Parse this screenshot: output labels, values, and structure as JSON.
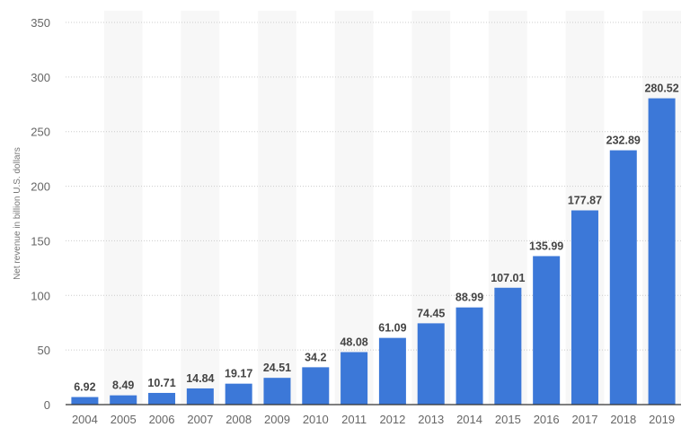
{
  "chart_data": {
    "type": "bar",
    "title": "",
    "xlabel": "",
    "ylabel": "Net revenue in billion U.S. dollars",
    "ylim": [
      0,
      350
    ],
    "yticks": [
      0,
      50,
      100,
      150,
      200,
      250,
      300,
      350
    ],
    "grid": true,
    "bar_color": "#3c78d8",
    "categories": [
      "2004",
      "2005",
      "2006",
      "2007",
      "2008",
      "2009",
      "2010",
      "2011",
      "2012",
      "2013",
      "2014",
      "2015",
      "2016",
      "2017",
      "2018",
      "2019"
    ],
    "values": [
      6.92,
      8.49,
      10.71,
      14.84,
      19.17,
      24.51,
      34.2,
      48.08,
      61.09,
      74.45,
      88.99,
      107.01,
      135.99,
      177.87,
      232.89,
      280.52
    ],
    "data_labels": [
      "6.92",
      "8.49",
      "10.71",
      "14.84",
      "19.17",
      "24.51",
      "34.2",
      "48.08",
      "61.09",
      "74.45",
      "88.99",
      "107.01",
      "135.99",
      "177.87",
      "232.89",
      "280.52"
    ]
  }
}
